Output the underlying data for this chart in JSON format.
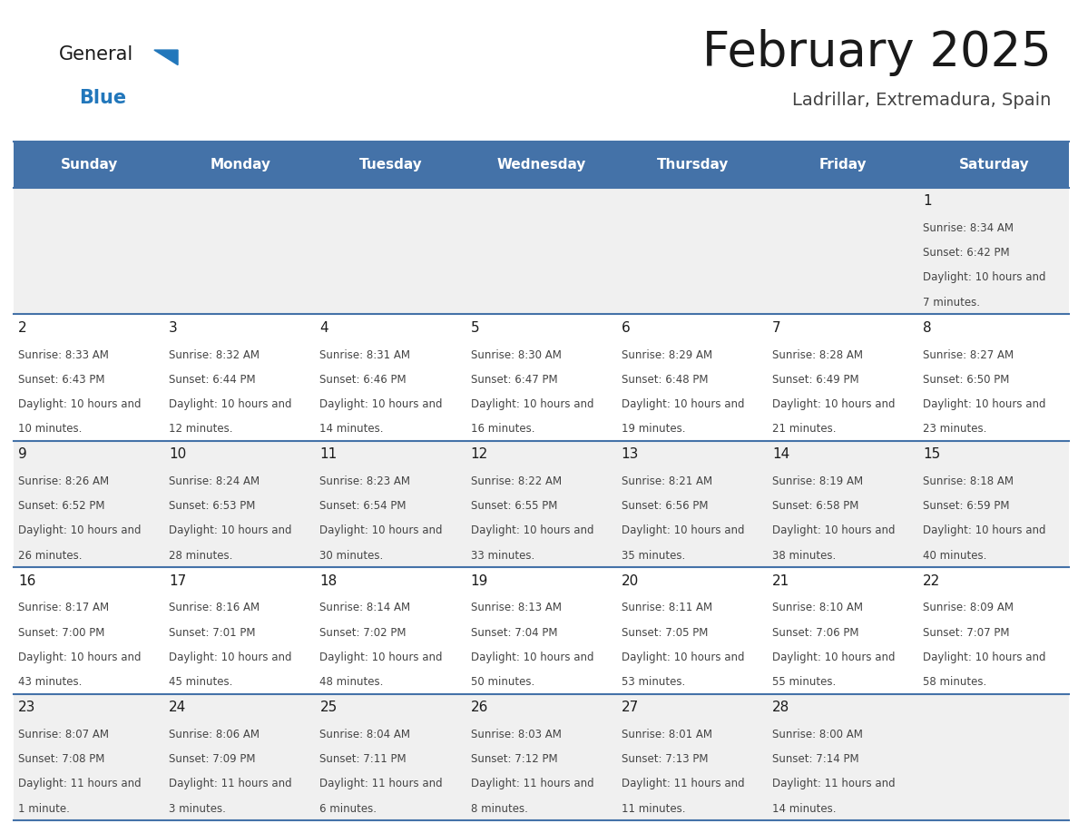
{
  "title": "February 2025",
  "subtitle": "Ladrillar, Extremadura, Spain",
  "header_bg": "#4472A8",
  "header_text_color": "#FFFFFF",
  "day_names": [
    "Sunday",
    "Monday",
    "Tuesday",
    "Wednesday",
    "Thursday",
    "Friday",
    "Saturday"
  ],
  "row_bg_even": "#F0F0F0",
  "row_bg_odd": "#FFFFFF",
  "separator_color": "#4472A8",
  "text_color": "#444444",
  "day_num_color": "#1a1a1a",
  "calendar": [
    [
      {
        "day": null
      },
      {
        "day": null
      },
      {
        "day": null
      },
      {
        "day": null
      },
      {
        "day": null
      },
      {
        "day": null
      },
      {
        "day": 1,
        "sunrise": "8:34 AM",
        "sunset": "6:42 PM",
        "daylight": "10 hours and 7 minutes."
      }
    ],
    [
      {
        "day": 2,
        "sunrise": "8:33 AM",
        "sunset": "6:43 PM",
        "daylight": "10 hours and 10 minutes."
      },
      {
        "day": 3,
        "sunrise": "8:32 AM",
        "sunset": "6:44 PM",
        "daylight": "10 hours and 12 minutes."
      },
      {
        "day": 4,
        "sunrise": "8:31 AM",
        "sunset": "6:46 PM",
        "daylight": "10 hours and 14 minutes."
      },
      {
        "day": 5,
        "sunrise": "8:30 AM",
        "sunset": "6:47 PM",
        "daylight": "10 hours and 16 minutes."
      },
      {
        "day": 6,
        "sunrise": "8:29 AM",
        "sunset": "6:48 PM",
        "daylight": "10 hours and 19 minutes."
      },
      {
        "day": 7,
        "sunrise": "8:28 AM",
        "sunset": "6:49 PM",
        "daylight": "10 hours and 21 minutes."
      },
      {
        "day": 8,
        "sunrise": "8:27 AM",
        "sunset": "6:50 PM",
        "daylight": "10 hours and 23 minutes."
      }
    ],
    [
      {
        "day": 9,
        "sunrise": "8:26 AM",
        "sunset": "6:52 PM",
        "daylight": "10 hours and 26 minutes."
      },
      {
        "day": 10,
        "sunrise": "8:24 AM",
        "sunset": "6:53 PM",
        "daylight": "10 hours and 28 minutes."
      },
      {
        "day": 11,
        "sunrise": "8:23 AM",
        "sunset": "6:54 PM",
        "daylight": "10 hours and 30 minutes."
      },
      {
        "day": 12,
        "sunrise": "8:22 AM",
        "sunset": "6:55 PM",
        "daylight": "10 hours and 33 minutes."
      },
      {
        "day": 13,
        "sunrise": "8:21 AM",
        "sunset": "6:56 PM",
        "daylight": "10 hours and 35 minutes."
      },
      {
        "day": 14,
        "sunrise": "8:19 AM",
        "sunset": "6:58 PM",
        "daylight": "10 hours and 38 minutes."
      },
      {
        "day": 15,
        "sunrise": "8:18 AM",
        "sunset": "6:59 PM",
        "daylight": "10 hours and 40 minutes."
      }
    ],
    [
      {
        "day": 16,
        "sunrise": "8:17 AM",
        "sunset": "7:00 PM",
        "daylight": "10 hours and 43 minutes."
      },
      {
        "day": 17,
        "sunrise": "8:16 AM",
        "sunset": "7:01 PM",
        "daylight": "10 hours and 45 minutes."
      },
      {
        "day": 18,
        "sunrise": "8:14 AM",
        "sunset": "7:02 PM",
        "daylight": "10 hours and 48 minutes."
      },
      {
        "day": 19,
        "sunrise": "8:13 AM",
        "sunset": "7:04 PM",
        "daylight": "10 hours and 50 minutes."
      },
      {
        "day": 20,
        "sunrise": "8:11 AM",
        "sunset": "7:05 PM",
        "daylight": "10 hours and 53 minutes."
      },
      {
        "day": 21,
        "sunrise": "8:10 AM",
        "sunset": "7:06 PM",
        "daylight": "10 hours and 55 minutes."
      },
      {
        "day": 22,
        "sunrise": "8:09 AM",
        "sunset": "7:07 PM",
        "daylight": "10 hours and 58 minutes."
      }
    ],
    [
      {
        "day": 23,
        "sunrise": "8:07 AM",
        "sunset": "7:08 PM",
        "daylight": "11 hours and 1 minute."
      },
      {
        "day": 24,
        "sunrise": "8:06 AM",
        "sunset": "7:09 PM",
        "daylight": "11 hours and 3 minutes."
      },
      {
        "day": 25,
        "sunrise": "8:04 AM",
        "sunset": "7:11 PM",
        "daylight": "11 hours and 6 minutes."
      },
      {
        "day": 26,
        "sunrise": "8:03 AM",
        "sunset": "7:12 PM",
        "daylight": "11 hours and 8 minutes."
      },
      {
        "day": 27,
        "sunrise": "8:01 AM",
        "sunset": "7:13 PM",
        "daylight": "11 hours and 11 minutes."
      },
      {
        "day": 28,
        "sunrise": "8:00 AM",
        "sunset": "7:14 PM",
        "daylight": "11 hours and 14 minutes."
      },
      {
        "day": null
      }
    ]
  ],
  "logo_color_general": "#1a1a1a",
  "logo_color_blue": "#2277BB",
  "logo_triangle_color": "#2277BB",
  "fig_width": 11.88,
  "fig_height": 9.18,
  "title_fontsize": 38,
  "subtitle_fontsize": 14,
  "header_fontsize": 11,
  "day_num_fontsize": 11,
  "cell_fontsize": 8.5
}
